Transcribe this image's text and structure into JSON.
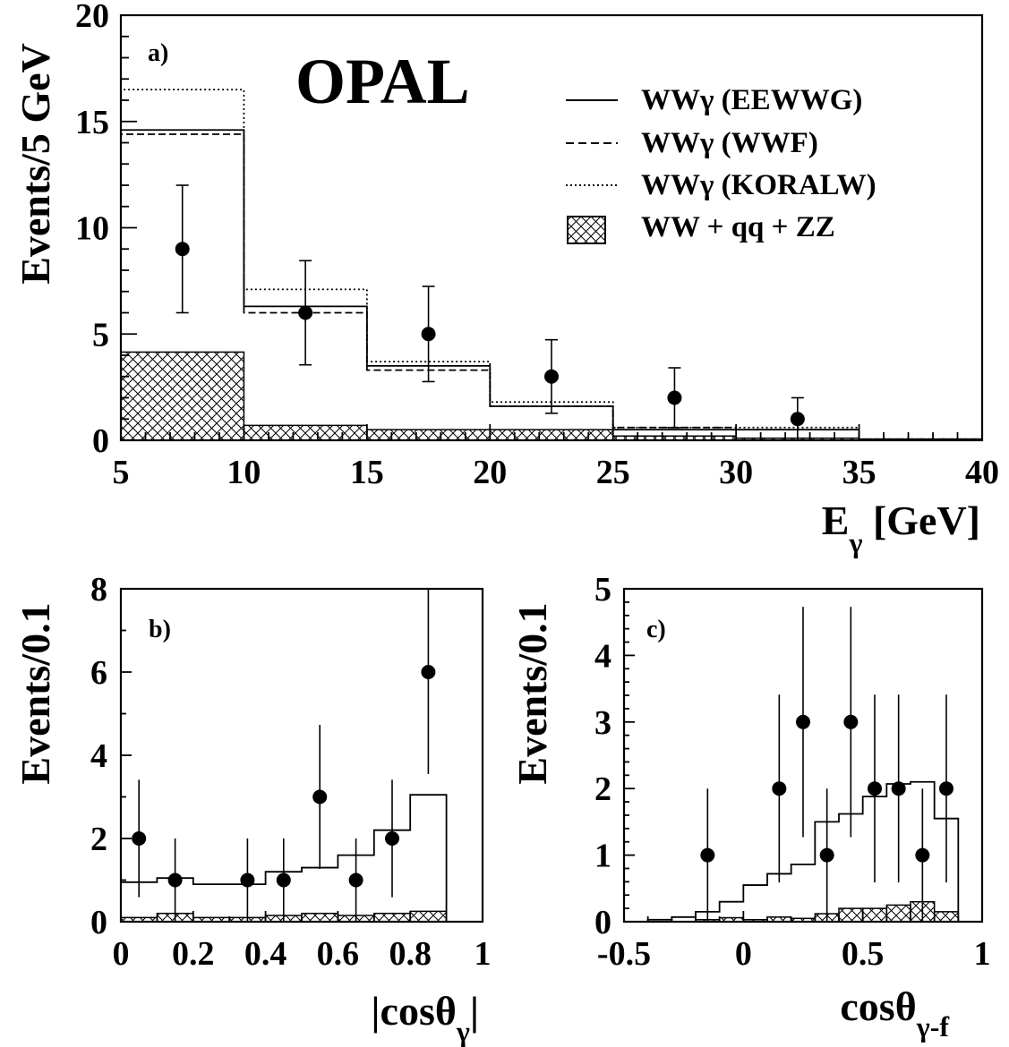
{
  "experiment_label": "OPAL",
  "chart_data": [
    {
      "panel_label": "a)",
      "type": "histogram",
      "xlabel": "E",
      "xlabel_sub": "γ",
      "xlabel_suffix": " [GeV]",
      "ylabel": "Events/5 GeV",
      "xlim": [
        5,
        40
      ],
      "ylim": [
        0,
        20
      ],
      "xticks": [
        5,
        10,
        15,
        20,
        25,
        30,
        35,
        40
      ],
      "yticks": [
        0,
        5,
        10,
        15,
        20
      ],
      "bin_edges": [
        5,
        10,
        15,
        20,
        25,
        30,
        35,
        40
      ],
      "legend": {
        "placement": "top-right",
        "entries": [
          {
            "label": "WWγ (EEWWG)",
            "style": "solid"
          },
          {
            "label": "WWγ (WWF)",
            "style": "dashed"
          },
          {
            "label": "WWγ (KORALW)",
            "style": "dotted"
          },
          {
            "label": "WW + qq + ZZ",
            "style": "hatched"
          }
        ]
      },
      "series": [
        {
          "name": "WWγ (EEWWG)",
          "style": "solid",
          "values": [
            14.6,
            6.3,
            3.5,
            1.6,
            0.5,
            0.5,
            0.05
          ]
        },
        {
          "name": "WWγ (WWF)",
          "style": "dashed",
          "values": [
            14.4,
            6.0,
            3.3,
            1.6,
            0.6,
            0.5,
            0.05
          ]
        },
        {
          "name": "WWγ (KORALW)",
          "style": "dotted",
          "values": [
            16.5,
            7.1,
            3.7,
            1.8,
            0.6,
            0.6,
            0.05
          ]
        },
        {
          "name": "WW + qq + ZZ",
          "style": "hatched",
          "values": [
            4.15,
            0.7,
            0.5,
            0.5,
            0.2,
            0.1,
            0.0
          ]
        }
      ],
      "data_points": [
        {
          "x": 7.5,
          "y": 9,
          "err": 3.0
        },
        {
          "x": 12.5,
          "y": 6,
          "err": 2.45
        },
        {
          "x": 17.5,
          "y": 5,
          "err": 2.24
        },
        {
          "x": 22.5,
          "y": 3,
          "err": 1.73
        },
        {
          "x": 27.5,
          "y": 2,
          "err": 1.41
        },
        {
          "x": 32.5,
          "y": 1,
          "err": 1.0
        }
      ]
    },
    {
      "panel_label": "b)",
      "type": "histogram",
      "xlabel": "|cosθ",
      "xlabel_sub": "γ",
      "xlabel_suffix": "|",
      "ylabel": "Events/0.1",
      "xlim": [
        0,
        1
      ],
      "ylim": [
        0,
        8
      ],
      "xticks": [
        0,
        0.2,
        0.4,
        0.6,
        0.8,
        1
      ],
      "yticks": [
        0,
        2,
        4,
        6,
        8
      ],
      "bin_edges": [
        0,
        0.1,
        0.2,
        0.3,
        0.4,
        0.5,
        0.6,
        0.7,
        0.8,
        0.9
      ],
      "series": [
        {
          "name": "",
          "style": "solid",
          "values": [
            0.95,
            1.05,
            0.9,
            0.9,
            1.2,
            1.3,
            1.6,
            2.2,
            3.05
          ]
        },
        {
          "name": "",
          "style": "hatched",
          "values": [
            0.1,
            0.2,
            0.1,
            0.1,
            0.15,
            0.2,
            0.15,
            0.2,
            0.25
          ]
        }
      ],
      "data_points": [
        {
          "x": 0.05,
          "y": 2,
          "err": 1.41
        },
        {
          "x": 0.15,
          "y": 1,
          "err": 1.0
        },
        {
          "x": 0.35,
          "y": 1,
          "err": 1.0
        },
        {
          "x": 0.45,
          "y": 1,
          "err": 1.0
        },
        {
          "x": 0.55,
          "y": 3,
          "err": 1.73
        },
        {
          "x": 0.65,
          "y": 1,
          "err": 1.0
        },
        {
          "x": 0.75,
          "y": 2,
          "err": 1.41
        },
        {
          "x": 0.85,
          "y": 6,
          "err": 2.45
        }
      ]
    },
    {
      "panel_label": "c)",
      "type": "histogram",
      "xlabel": "cosθ",
      "xlabel_sub": "γ-f",
      "xlabel_suffix": "",
      "ylabel": "Events/0.1",
      "xlim": [
        -0.5,
        1
      ],
      "ylim": [
        0,
        5
      ],
      "xticks": [
        -0.5,
        0,
        0.5,
        1
      ],
      "yticks": [
        0,
        1,
        2,
        3,
        4,
        5
      ],
      "bin_edges": [
        -0.5,
        -0.4,
        -0.3,
        -0.2,
        -0.1,
        0,
        0.1,
        0.2,
        0.3,
        0.4,
        0.5,
        0.6,
        0.7,
        0.8,
        0.9
      ],
      "series": [
        {
          "name": "",
          "style": "solid",
          "values": [
            0.0,
            0.03,
            0.07,
            0.15,
            0.3,
            0.55,
            0.72,
            0.86,
            1.5,
            1.62,
            1.88,
            2.07,
            2.1,
            1.55
          ]
        },
        {
          "name": "",
          "style": "hatched",
          "values": [
            0.0,
            0.0,
            0.0,
            0.03,
            0.06,
            0.03,
            0.07,
            0.05,
            0.12,
            0.2,
            0.2,
            0.25,
            0.3,
            0.15
          ]
        }
      ],
      "data_points": [
        {
          "x": -0.15,
          "y": 1,
          "err": 1.0
        },
        {
          "x": 0.15,
          "y": 2,
          "err": 1.41
        },
        {
          "x": 0.25,
          "y": 3,
          "err": 1.73
        },
        {
          "x": 0.35,
          "y": 1,
          "err": 1.0
        },
        {
          "x": 0.45,
          "y": 3,
          "err": 1.73
        },
        {
          "x": 0.55,
          "y": 2,
          "err": 1.41
        },
        {
          "x": 0.65,
          "y": 2,
          "err": 1.41
        },
        {
          "x": 0.75,
          "y": 1,
          "err": 1.0
        },
        {
          "x": 0.85,
          "y": 2,
          "err": 1.41
        }
      ]
    }
  ]
}
